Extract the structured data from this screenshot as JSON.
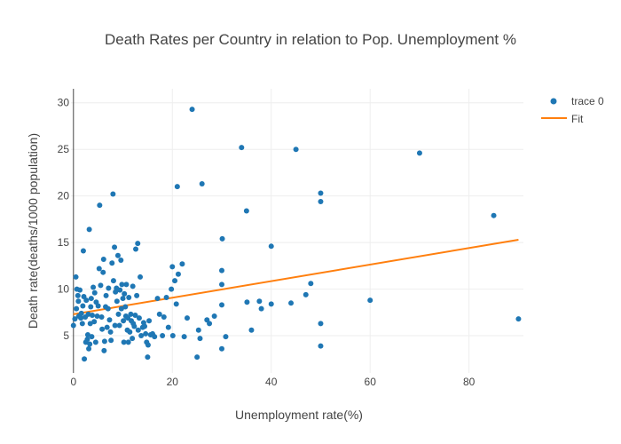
{
  "chart_data": {
    "type": "scatter",
    "title": "Death Rates per Country in relation to Pop. Unemployment %",
    "xlabel": "Unemployment rate(%)",
    "ylabel": "Death rate(deaths/1000 population)",
    "xlim": [
      -0.5,
      91
    ],
    "ylim": [
      1,
      31.5
    ],
    "xticks": [
      0,
      20,
      40,
      60,
      80
    ],
    "yticks": [
      5,
      10,
      15,
      20,
      25,
      30
    ],
    "grid": true,
    "legend_position": "top-right",
    "colors": {
      "scatter": "#1f77b4",
      "fit": "#ff7f0e",
      "grid": "#eeeeee",
      "zero_line": "#444444"
    },
    "series": [
      {
        "name": "trace 0",
        "mode": "markers",
        "points": [
          [
            0.0,
            6.1
          ],
          [
            0.3,
            6.8
          ],
          [
            0.5,
            11.3
          ],
          [
            0.6,
            7.9
          ],
          [
            0.7,
            10.0
          ],
          [
            0.9,
            9.3
          ],
          [
            1.0,
            8.7
          ],
          [
            1.1,
            7.1
          ],
          [
            1.3,
            9.9
          ],
          [
            1.5,
            6.9
          ],
          [
            1.6,
            7.4
          ],
          [
            1.8,
            6.3
          ],
          [
            1.9,
            8.2
          ],
          [
            2.0,
            14.1
          ],
          [
            2.1,
            9.2
          ],
          [
            2.2,
            2.5
          ],
          [
            2.4,
            7.0
          ],
          [
            2.5,
            4.3
          ],
          [
            2.6,
            8.8
          ],
          [
            2.8,
            4.6
          ],
          [
            2.9,
            5.1
          ],
          [
            3.0,
            7.3
          ],
          [
            3.1,
            3.6
          ],
          [
            3.2,
            16.4
          ],
          [
            3.3,
            4.1
          ],
          [
            3.4,
            6.3
          ],
          [
            3.5,
            8.1
          ],
          [
            3.6,
            9.0
          ],
          [
            3.7,
            4.9
          ],
          [
            3.8,
            7.2
          ],
          [
            4.0,
            10.2
          ],
          [
            4.2,
            6.5
          ],
          [
            4.3,
            9.6
          ],
          [
            4.5,
            4.3
          ],
          [
            4.6,
            8.6
          ],
          [
            4.8,
            7.1
          ],
          [
            5.0,
            8.2
          ],
          [
            5.2,
            12.2
          ],
          [
            5.3,
            19.0
          ],
          [
            5.5,
            10.4
          ],
          [
            5.7,
            7.0
          ],
          [
            5.8,
            5.7
          ],
          [
            6.0,
            11.8
          ],
          [
            6.1,
            13.2
          ],
          [
            6.2,
            3.4
          ],
          [
            6.3,
            4.4
          ],
          [
            6.5,
            8.1
          ],
          [
            6.6,
            9.3
          ],
          [
            6.8,
            5.9
          ],
          [
            7.0,
            7.9
          ],
          [
            7.1,
            10.1
          ],
          [
            7.3,
            6.7
          ],
          [
            7.5,
            5.4
          ],
          [
            7.6,
            4.5
          ],
          [
            7.8,
            12.8
          ],
          [
            8.0,
            20.2
          ],
          [
            8.1,
            10.9
          ],
          [
            8.3,
            14.5
          ],
          [
            8.4,
            6.1
          ],
          [
            8.5,
            9.7
          ],
          [
            8.7,
            10.1
          ],
          [
            8.8,
            8.7
          ],
          [
            9.0,
            13.6
          ],
          [
            9.1,
            7.3
          ],
          [
            9.3,
            6.1
          ],
          [
            9.4,
            9.9
          ],
          [
            9.6,
            13.1
          ],
          [
            9.7,
            7.9
          ],
          [
            9.8,
            10.5
          ],
          [
            10.0,
            9.0
          ],
          [
            10.1,
            6.6
          ],
          [
            10.2,
            4.3
          ],
          [
            10.3,
            9.5
          ],
          [
            10.5,
            8.1
          ],
          [
            10.6,
            7.1
          ],
          [
            10.7,
            10.5
          ],
          [
            10.9,
            5.6
          ],
          [
            11.0,
            6.9
          ],
          [
            11.1,
            4.3
          ],
          [
            11.2,
            9.1
          ],
          [
            11.4,
            5.4
          ],
          [
            11.6,
            7.3
          ],
          [
            11.7,
            6.6
          ],
          [
            11.9,
            4.7
          ],
          [
            12.0,
            10.3
          ],
          [
            12.1,
            6.3
          ],
          [
            12.3,
            6.0
          ],
          [
            12.5,
            7.2
          ],
          [
            12.6,
            14.3
          ],
          [
            12.8,
            9.3
          ],
          [
            13.0,
            14.9
          ],
          [
            13.1,
            5.6
          ],
          [
            13.3,
            6.9
          ],
          [
            13.5,
            11.3
          ],
          [
            13.7,
            5.0
          ],
          [
            14.0,
            5.9
          ],
          [
            14.2,
            6.4
          ],
          [
            14.4,
            6.0
          ],
          [
            14.6,
            5.2
          ],
          [
            14.8,
            4.3
          ],
          [
            15.0,
            2.7
          ],
          [
            15.1,
            4.0
          ],
          [
            15.3,
            6.6
          ],
          [
            15.6,
            5.1
          ],
          [
            16.0,
            5.2
          ],
          [
            16.4,
            4.9
          ],
          [
            17.0,
            9.0
          ],
          [
            17.4,
            7.3
          ],
          [
            18.0,
            5.0
          ],
          [
            18.3,
            7.0
          ],
          [
            18.8,
            9.1
          ],
          [
            19.2,
            5.9
          ],
          [
            19.8,
            10.0
          ],
          [
            20.0,
            12.4
          ],
          [
            20.1,
            5.0
          ],
          [
            20.5,
            10.9
          ],
          [
            20.8,
            8.4
          ],
          [
            21.0,
            21.0
          ],
          [
            21.2,
            11.6
          ],
          [
            22.0,
            12.7
          ],
          [
            22.4,
            4.9
          ],
          [
            23.0,
            6.9
          ],
          [
            24.0,
            29.3
          ],
          [
            25.0,
            2.7
          ],
          [
            25.3,
            5.6
          ],
          [
            25.6,
            4.7
          ],
          [
            26.0,
            21.3
          ],
          [
            27.0,
            6.7
          ],
          [
            27.5,
            6.3
          ],
          [
            28.5,
            7.1
          ],
          [
            30.0,
            3.6
          ],
          [
            30.0,
            12.0
          ],
          [
            30.0,
            8.3
          ],
          [
            30.0,
            10.5
          ],
          [
            30.1,
            15.4
          ],
          [
            30.8,
            4.9
          ],
          [
            34.0,
            25.2
          ],
          [
            35.0,
            18.4
          ],
          [
            35.1,
            8.6
          ],
          [
            36.0,
            5.6
          ],
          [
            37.6,
            8.7
          ],
          [
            38.0,
            7.9
          ],
          [
            40.0,
            14.6
          ],
          [
            40.0,
            8.4
          ],
          [
            44.0,
            8.5
          ],
          [
            45.0,
            25.0
          ],
          [
            47.0,
            9.4
          ],
          [
            48.0,
            10.6
          ],
          [
            50.0,
            20.3
          ],
          [
            50.0,
            19.4
          ],
          [
            50.0,
            6.3
          ],
          [
            50.0,
            3.9
          ],
          [
            60.0,
            8.8
          ],
          [
            70.0,
            24.6
          ],
          [
            85.0,
            17.9
          ],
          [
            90.0,
            6.8
          ]
        ]
      },
      {
        "name": "Fit",
        "mode": "lines",
        "points": [
          [
            0.0,
            7.3
          ],
          [
            90.0,
            15.3
          ]
        ]
      }
    ]
  }
}
